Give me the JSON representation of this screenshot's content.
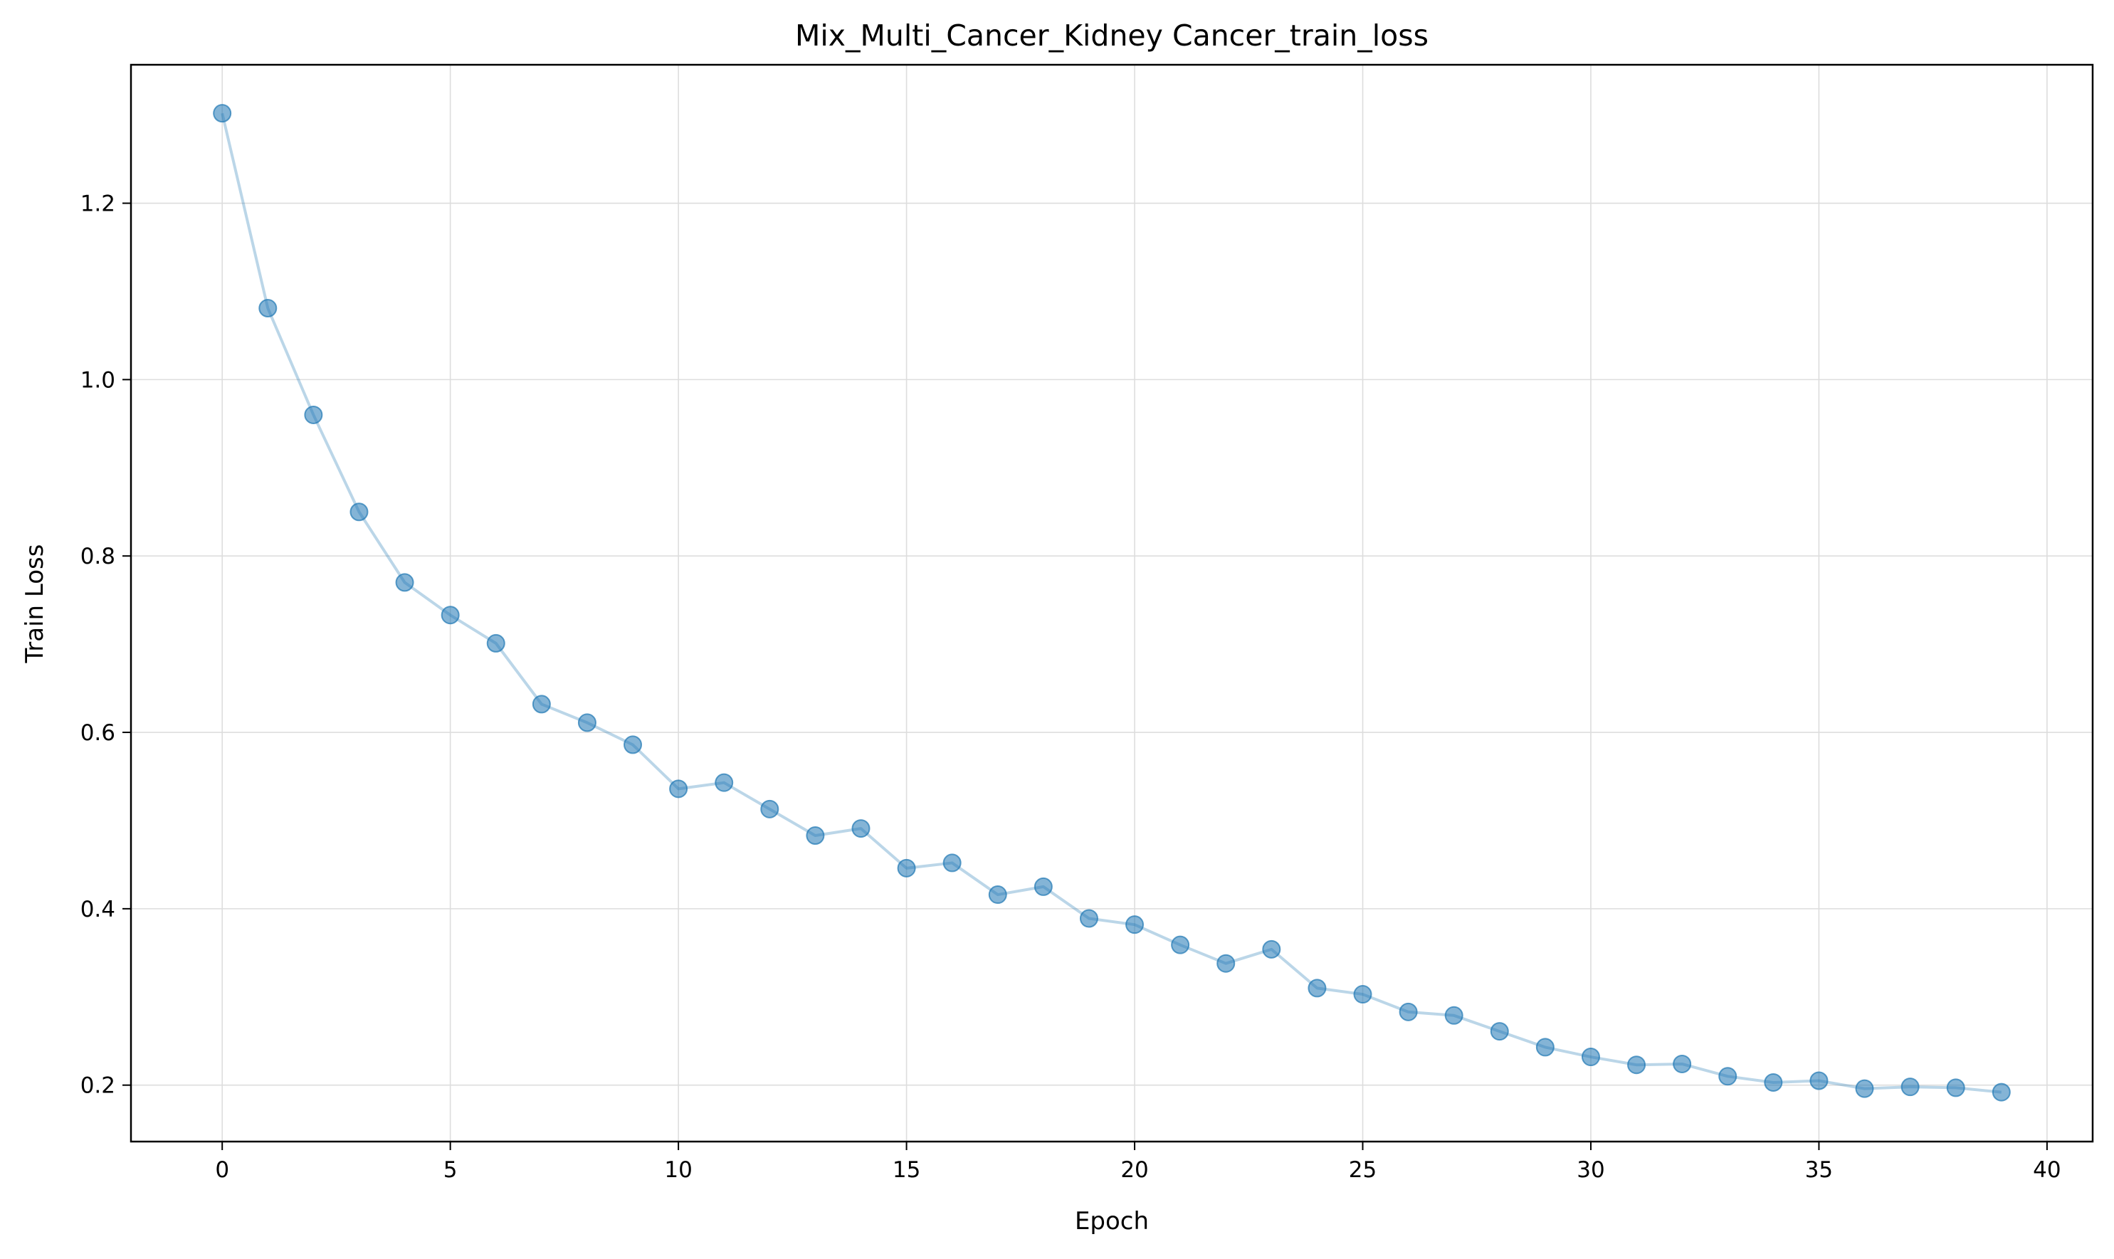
{
  "chart_data": {
    "type": "line",
    "title": "Mix_Multi_Cancer_Kidney Cancer_train_loss",
    "xlabel": "Epoch",
    "ylabel": "Train Loss",
    "xlim": [
      -2,
      41
    ],
    "ylim": [
      0.136,
      1.357
    ],
    "xticks": [
      0,
      5,
      10,
      15,
      20,
      25,
      30,
      35,
      40
    ],
    "yticks": [
      0.2,
      0.4,
      0.6,
      0.8,
      1.0,
      1.2
    ],
    "ytick_labels": [
      "0.2",
      "0.4",
      "0.6",
      "0.8",
      "1.0",
      "1.2"
    ],
    "grid": true,
    "legend": "none",
    "colors": {
      "line": "#1f77b4",
      "marker": "#1f77b4",
      "grid": "#dddddd",
      "axes": "#000000"
    },
    "series": [
      {
        "x": [
          0,
          1,
          2,
          3,
          4,
          5,
          6,
          7,
          8,
          9,
          10,
          11,
          12,
          13,
          14,
          15,
          16,
          17,
          18,
          19,
          20,
          21,
          22,
          23,
          24,
          25,
          26,
          27,
          28,
          29,
          30,
          31,
          32,
          33,
          34,
          35,
          36,
          37,
          38,
          39
        ],
        "values": [
          1.302,
          1.081,
          0.96,
          0.85,
          0.77,
          0.733,
          0.701,
          0.632,
          0.611,
          0.586,
          0.536,
          0.543,
          0.513,
          0.483,
          0.491,
          0.446,
          0.452,
          0.416,
          0.425,
          0.389,
          0.382,
          0.359,
          0.338,
          0.354,
          0.31,
          0.303,
          0.283,
          0.279,
          0.261,
          0.243,
          0.232,
          0.223,
          0.224,
          0.21,
          0.203,
          0.205,
          0.196,
          0.198,
          0.197,
          0.192
        ]
      }
    ]
  }
}
